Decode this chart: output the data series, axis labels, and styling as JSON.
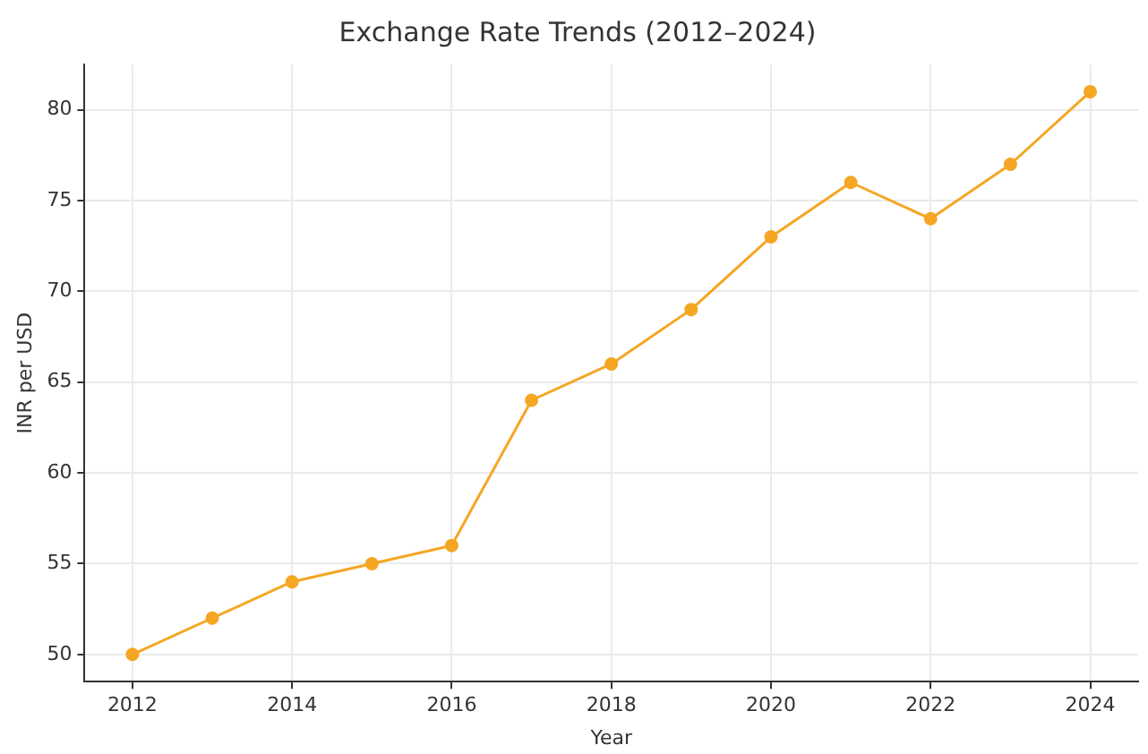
{
  "chart_data": {
    "type": "line",
    "title": "Exchange Rate Trends (2012–2024)",
    "xlabel": "Year",
    "ylabel": "INR per USD",
    "x": [
      2012,
      2013,
      2014,
      2015,
      2016,
      2017,
      2018,
      2019,
      2020,
      2021,
      2022,
      2023,
      2024
    ],
    "series": [
      {
        "color": "#f5a623",
        "values": [
          50,
          52,
          54,
          55,
          56,
          64,
          66,
          69,
          73,
          76,
          74,
          77,
          81
        ]
      }
    ],
    "xlim": [
      2011.4,
      2024.6
    ],
    "xticks": [
      2012,
      2014,
      2016,
      2018,
      2020,
      2022,
      2024
    ],
    "ylim": [
      48.5,
      82.5
    ],
    "yticks": [
      50,
      55,
      60,
      65,
      70,
      75,
      80
    ],
    "grid": true,
    "marker": "circle",
    "line_style": "solid",
    "legend": false
  }
}
